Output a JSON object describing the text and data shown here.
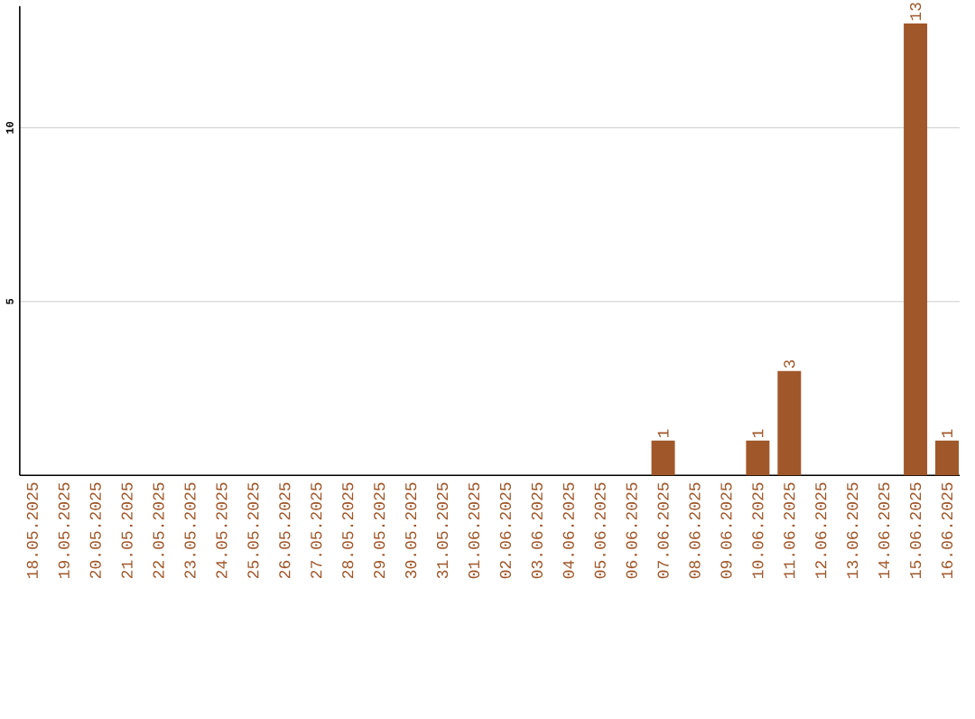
{
  "chart_data": {
    "type": "bar",
    "categories": [
      "18.05.2025",
      "19.05.2025",
      "20.05.2025",
      "21.05.2025",
      "22.05.2025",
      "23.05.2025",
      "24.05.2025",
      "25.05.2025",
      "26.05.2025",
      "27.05.2025",
      "28.05.2025",
      "29.05.2025",
      "30.05.2025",
      "31.05.2025",
      "01.06.2025",
      "02.06.2025",
      "03.06.2025",
      "04.06.2025",
      "05.06.2025",
      "06.06.2025",
      "07.06.2025",
      "08.06.2025",
      "09.06.2025",
      "10.06.2025",
      "11.06.2025",
      "12.06.2025",
      "13.06.2025",
      "14.06.2025",
      "15.06.2025",
      "16.06.2025"
    ],
    "values": [
      0,
      0,
      0,
      0,
      0,
      0,
      0,
      0,
      0,
      0,
      0,
      0,
      0,
      0,
      0,
      0,
      0,
      0,
      0,
      0,
      1,
      0,
      0,
      1,
      3,
      0,
      0,
      0,
      13,
      1
    ],
    "value_labels": [
      null,
      null,
      null,
      null,
      null,
      null,
      null,
      null,
      null,
      null,
      null,
      null,
      null,
      null,
      null,
      null,
      null,
      null,
      null,
      null,
      "1",
      null,
      null,
      "1",
      "3",
      null,
      null,
      null,
      "13",
      "1"
    ],
    "color": "#a0572a",
    "ylim": [
      0,
      13.5
    ],
    "yticks": [
      5,
      10
    ],
    "grid": "y"
  }
}
